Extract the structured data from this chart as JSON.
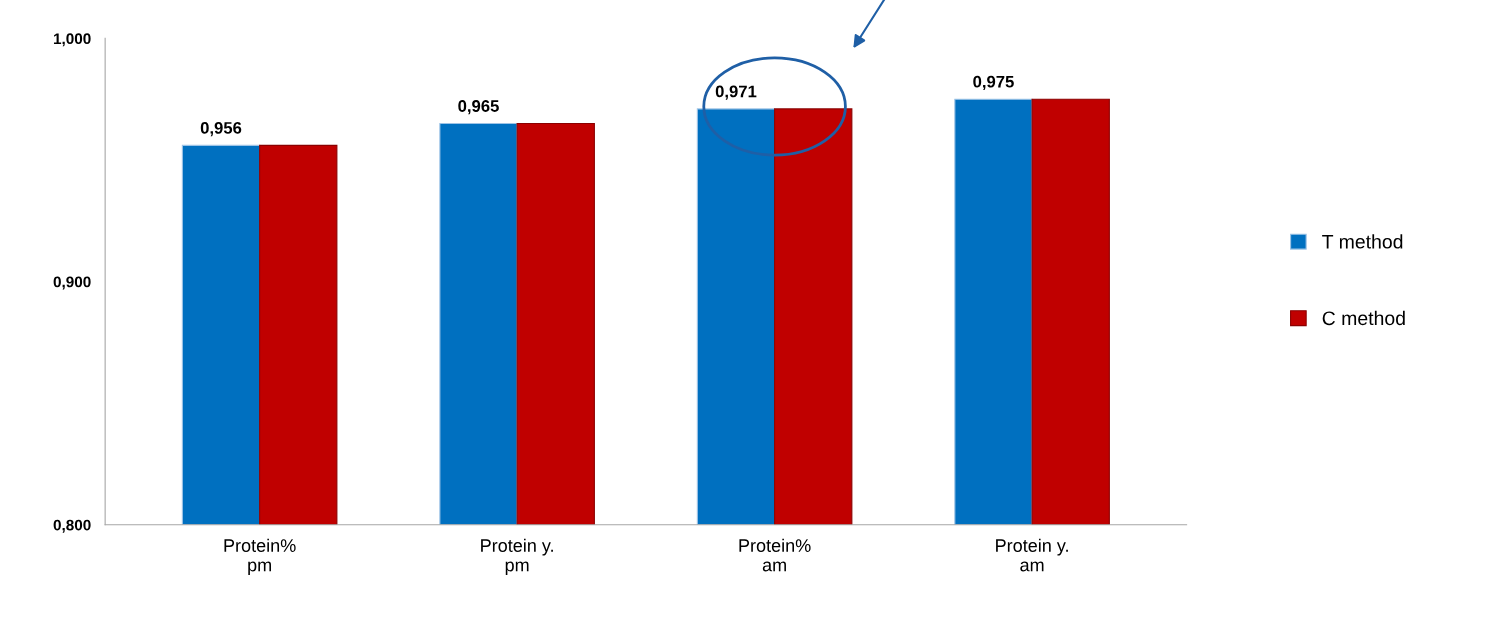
{
  "chart_data": {
    "type": "bar",
    "categories": [
      "Protein%\npm",
      "Protein y.\npm",
      "Protein%\nam",
      "Protein y.\nam"
    ],
    "series": [
      {
        "name": "T method",
        "color": "#0070c0",
        "values": [
          0.956,
          0.965,
          0.971,
          0.975
        ],
        "value_labels": [
          "0,956",
          "0,965",
          "0,971",
          "0,975"
        ]
      },
      {
        "name": "C method",
        "color": "#c00000",
        "values": [
          0.956,
          0.965,
          0.971,
          0.975
        ]
      }
    ],
    "ylim": [
      0.8,
      1.0
    ],
    "yticks": [
      {
        "value": 0.8,
        "label": "0,800"
      },
      {
        "value": 0.9,
        "label": "0,900"
      },
      {
        "value": 1.0,
        "label": "1,000"
      }
    ],
    "grid": false,
    "legend": "right"
  }
}
